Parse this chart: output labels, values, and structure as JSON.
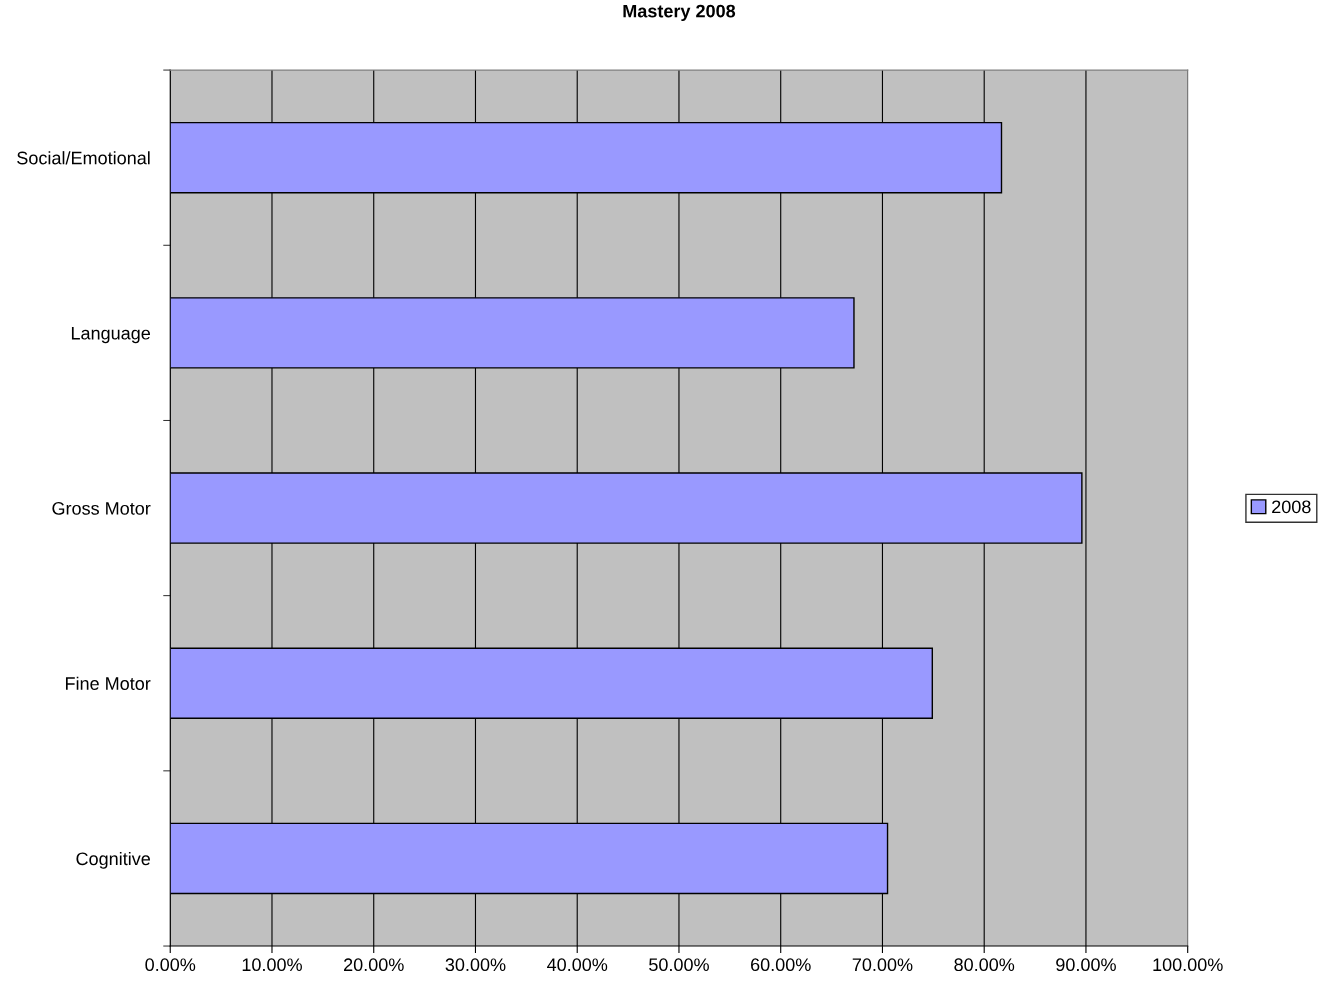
{
  "chart_data": {
    "type": "bar",
    "orientation": "horizontal",
    "title": "Mastery 2008",
    "categories": [
      "Social/Emotional",
      "Language",
      "Gross Motor",
      "Fine Motor",
      "Cognitive"
    ],
    "series": [
      {
        "name": "2008",
        "color": "#9999ff",
        "values": [
          81.7,
          67.2,
          89.6,
          74.9,
          70.5
        ]
      }
    ],
    "xlim": [
      0,
      100
    ],
    "xticks": [
      {
        "value": 0,
        "label": "0.00%"
      },
      {
        "value": 10,
        "label": "10.00%"
      },
      {
        "value": 20,
        "label": "20.00%"
      },
      {
        "value": 30,
        "label": "30.00%"
      },
      {
        "value": 40,
        "label": "40.00%"
      },
      {
        "value": 50,
        "label": "50.00%"
      },
      {
        "value": 60,
        "label": "60.00%"
      },
      {
        "value": 70,
        "label": "70.00%"
      },
      {
        "value": 80,
        "label": "80.00%"
      },
      {
        "value": 90,
        "label": "90.00%"
      },
      {
        "value": 100,
        "label": "100.00%"
      }
    ],
    "grid": "x",
    "legend": "right"
  }
}
